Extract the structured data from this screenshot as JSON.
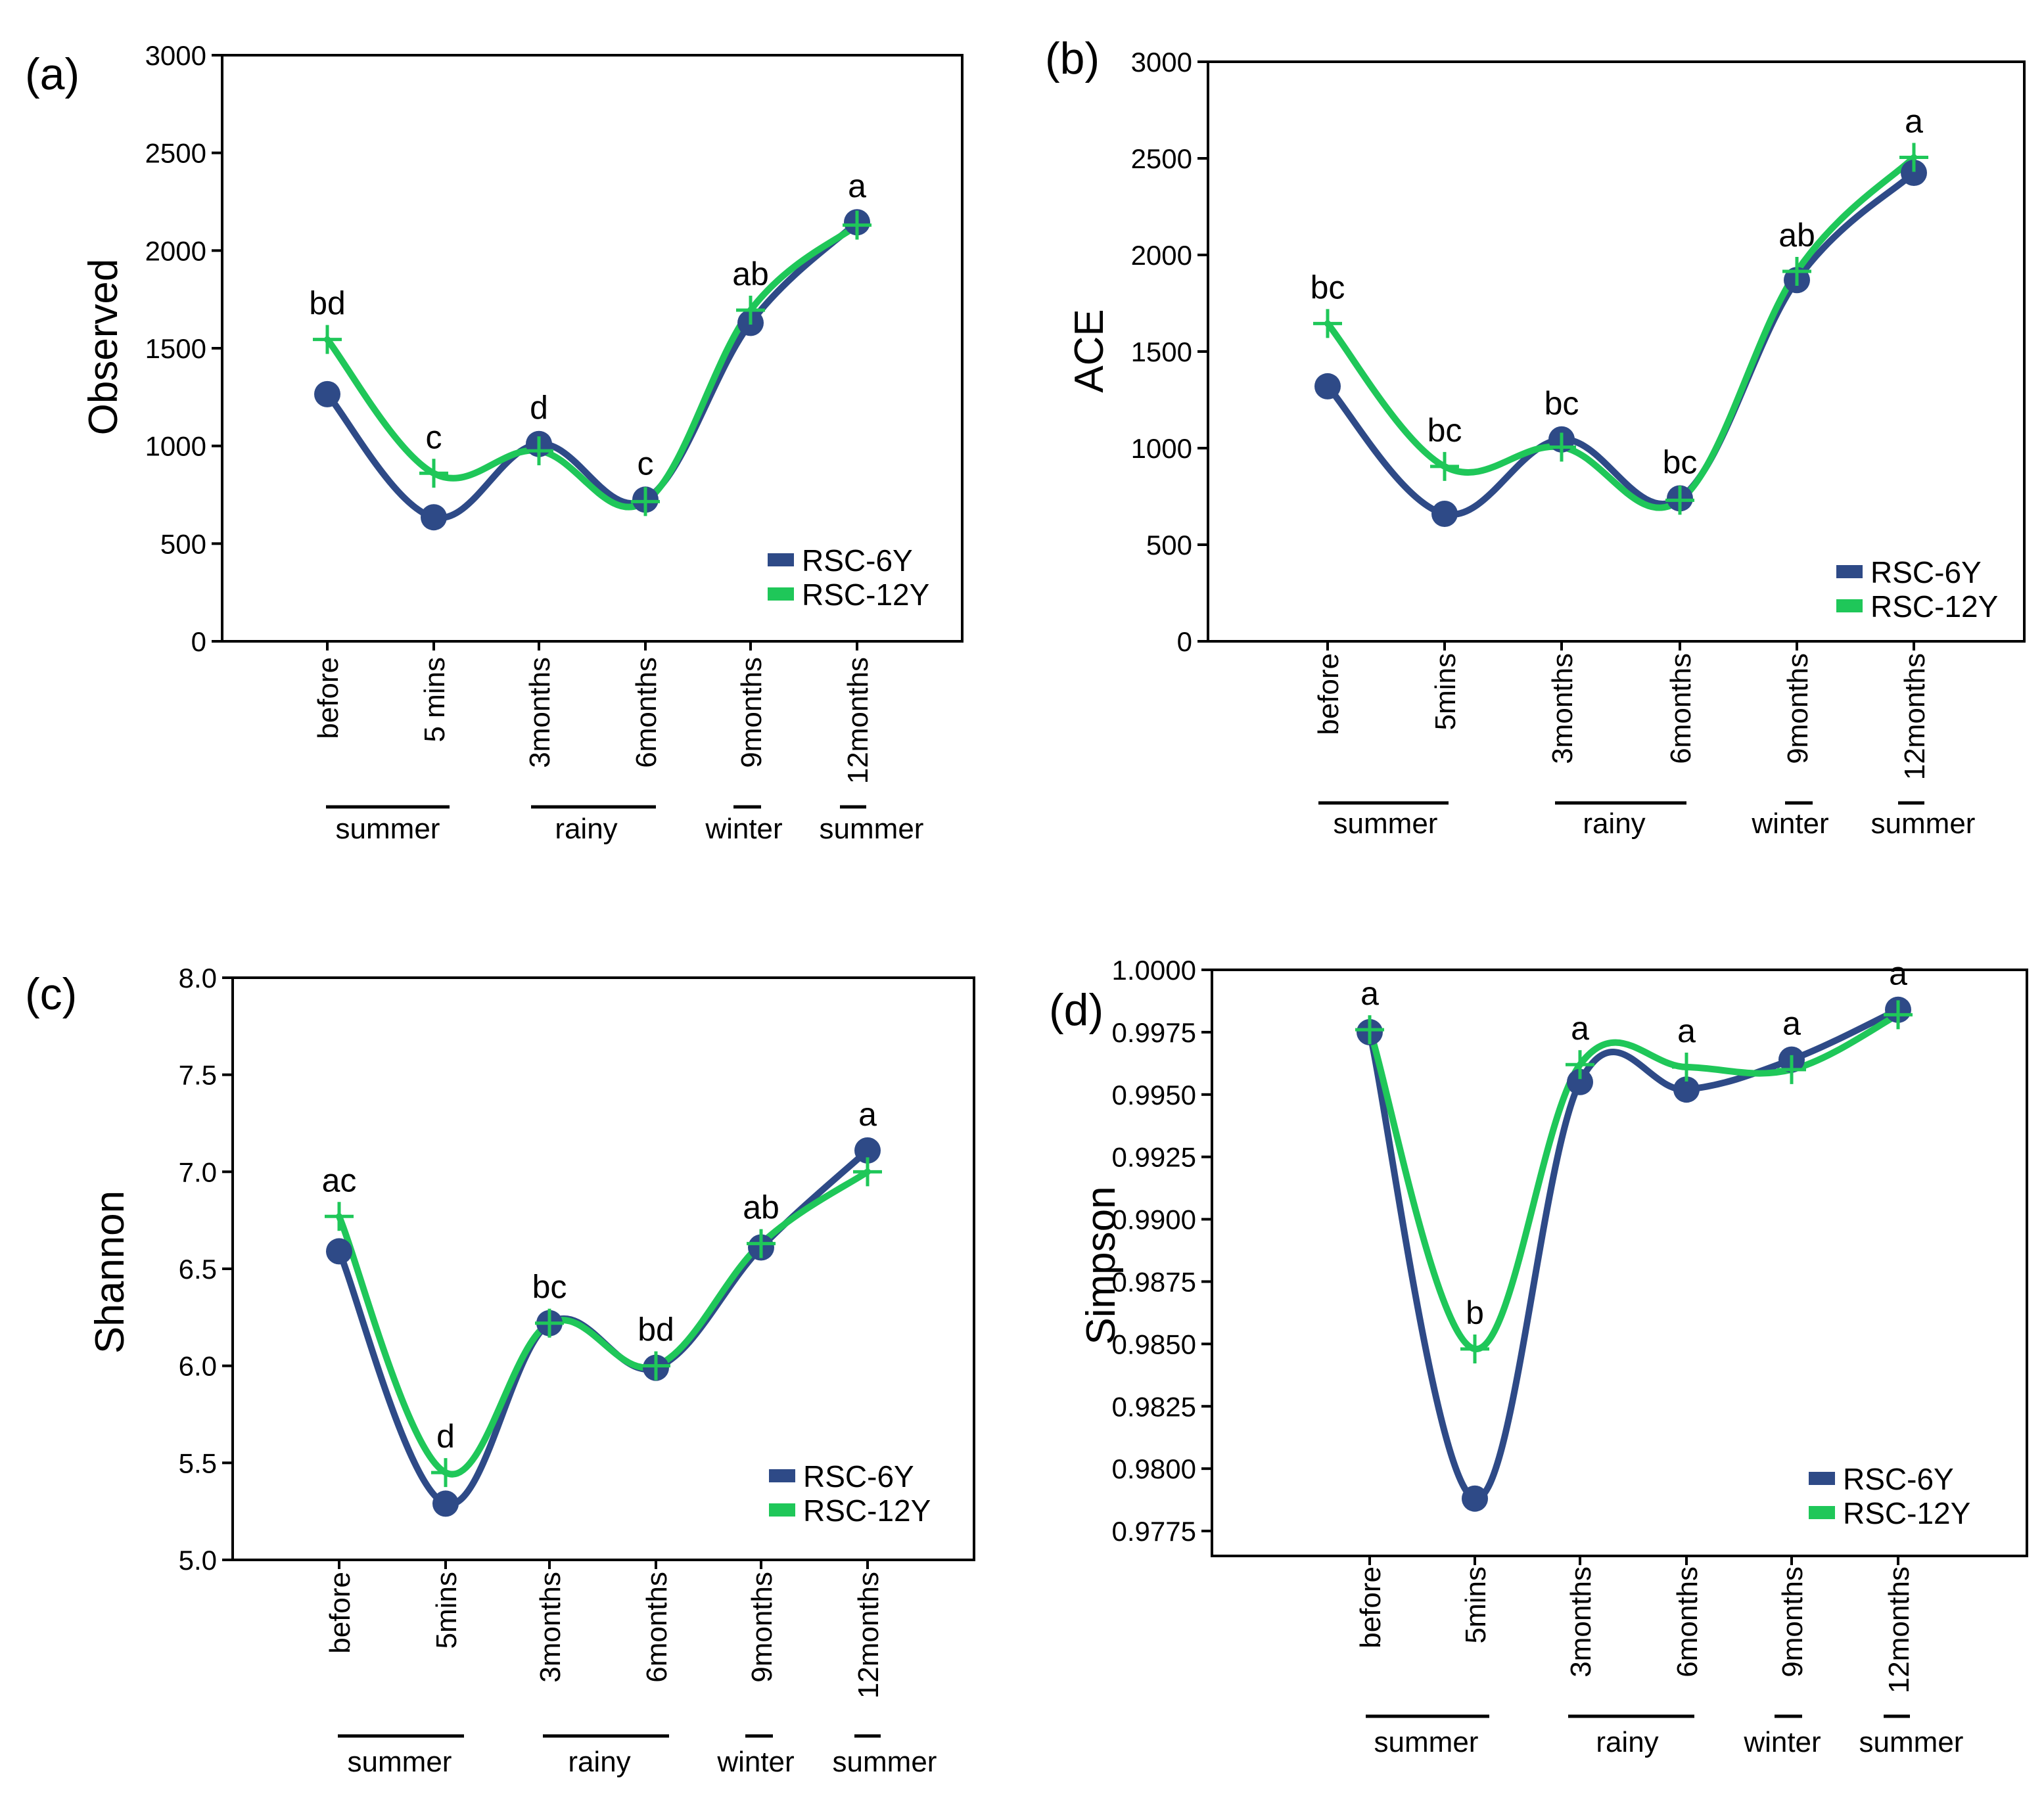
{
  "colors": {
    "series_6y": "#2e4a87",
    "series_12y": "#1fc759",
    "axis": "#000000"
  },
  "legend": {
    "placement": "bottom-right"
  },
  "chart_data": [
    {
      "type": "line",
      "panel": "(a)",
      "ylabel": "Observed",
      "xlabel": "",
      "categories": [
        "before",
        "5 mins",
        "3months",
        "6months",
        "9months",
        "12months"
      ],
      "seasons": [
        "summer",
        "rainy",
        "winter",
        "summer"
      ],
      "ylim": [
        0,
        3000
      ],
      "yticks": [
        "0",
        "500",
        "1000",
        "1500",
        "2000",
        "2500",
        "3000"
      ],
      "series": [
        {
          "name": "RSC-6Y",
          "values": [
            1265,
            635,
            1010,
            725,
            1630,
            2145
          ]
        },
        {
          "name": "RSC-12Y",
          "values": [
            1545,
            860,
            975,
            715,
            1695,
            2130
          ]
        }
      ],
      "significance": [
        "bd",
        "c",
        "d",
        "c",
        "ab",
        "a"
      ]
    },
    {
      "type": "line",
      "panel": "(b)",
      "ylabel": "ACE",
      "xlabel": "",
      "categories": [
        "before",
        "5mins",
        "3months",
        "6months",
        "9months",
        "12months"
      ],
      "seasons": [
        "summer",
        "rainy",
        "winter",
        "summer"
      ],
      "ylim": [
        0,
        3000
      ],
      "yticks": [
        "0",
        "500",
        "1000",
        "1500",
        "2000",
        "2500",
        "3000"
      ],
      "series": [
        {
          "name": "RSC-6Y",
          "values": [
            1320,
            660,
            1045,
            740,
            1870,
            2425
          ]
        },
        {
          "name": "RSC-12Y",
          "values": [
            1645,
            905,
            1005,
            730,
            1915,
            2505
          ]
        }
      ],
      "significance": [
        "bc",
        "bc",
        "bc",
        "bc",
        "ab",
        "a"
      ]
    },
    {
      "type": "line",
      "panel": "(c)",
      "ylabel": "Shannon",
      "xlabel": "",
      "categories": [
        "before",
        "5mins",
        "3months",
        "6months",
        "9months",
        "12months"
      ],
      "seasons": [
        "summer",
        "rainy",
        "winter",
        "summer"
      ],
      "ylim": [
        5.0,
        8.0
      ],
      "yticks": [
        "5.0",
        "5.5",
        "6.0",
        "6.5",
        "7.0",
        "7.5",
        "8.0"
      ],
      "series": [
        {
          "name": "RSC-6Y",
          "values": [
            6.59,
            5.29,
            6.22,
            5.99,
            6.61,
            7.11
          ]
        },
        {
          "name": "RSC-12Y",
          "values": [
            6.77,
            5.45,
            6.22,
            6.0,
            6.63,
            7.0
          ]
        }
      ],
      "significance": [
        "ac",
        "d",
        "bc",
        "bd",
        "ab",
        "a"
      ]
    },
    {
      "type": "line",
      "panel": "(d)",
      "ylabel": "Simpson",
      "xlabel": "",
      "categories": [
        "before",
        "5mins",
        "3months",
        "6months",
        "9months",
        "12months"
      ],
      "seasons": [
        "summer",
        "rainy",
        "winter",
        "summer"
      ],
      "ylim": [
        0.9765,
        1.0
      ],
      "yticks": [
        "0.9775",
        "0.9800",
        "0.9825",
        "0.9850",
        "0.9875",
        "0.9900",
        "0.9925",
        "0.9950",
        "0.9975",
        "1.0000"
      ],
      "series": [
        {
          "name": "RSC-6Y",
          "values": [
            0.9975,
            0.9788,
            0.9955,
            0.9952,
            0.9964,
            0.9984
          ]
        },
        {
          "name": "RSC-12Y",
          "values": [
            0.9976,
            0.9848,
            0.9962,
            0.9961,
            0.996,
            0.9982
          ]
        }
      ],
      "significance": [
        "a",
        "b",
        "a",
        "a",
        "a",
        "a"
      ]
    }
  ]
}
